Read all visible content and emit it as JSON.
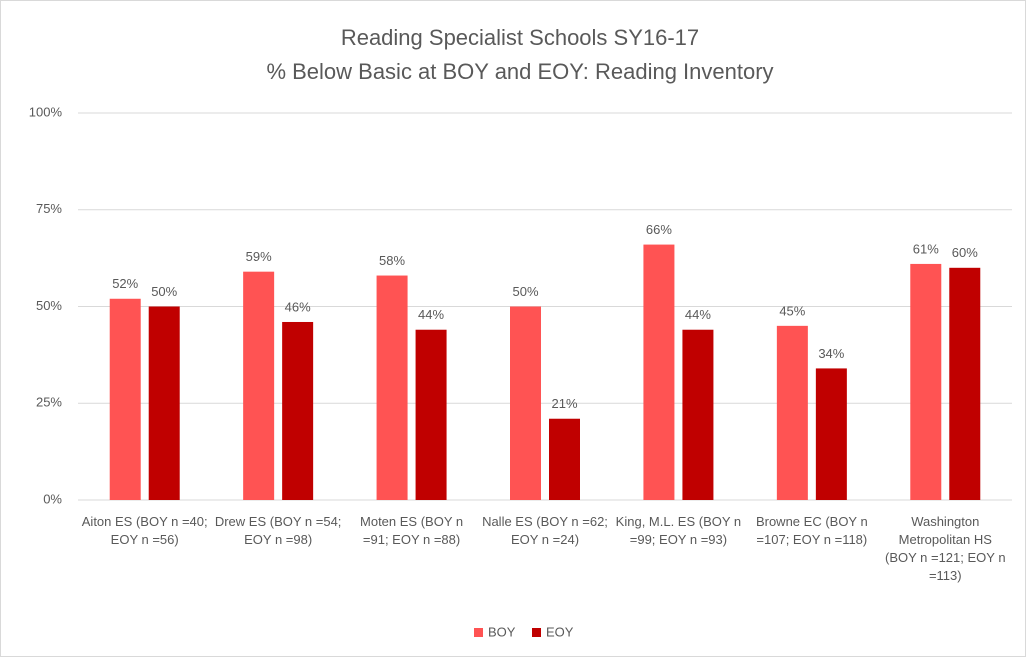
{
  "chart_data": {
    "type": "bar",
    "title": [
      "Reading Specialist Schools SY16-17",
      "% Below Basic at BOY and EOY: Reading Inventory"
    ],
    "categories": [
      "Aiton ES (BOY n =40; EOY n =56)",
      "Drew ES (BOY n =54; EOY n =98)",
      "Moten ES (BOY n =91; EOY n =88)",
      "Nalle ES (BOY n =62; EOY n =24)",
      "King, M.L. ES (BOY n =99; EOY n =93)",
      "Browne EC (BOY n =107; EOY n =118)",
      "Washington Metropolitan HS (BOY n =121; EOY n =113)"
    ],
    "series": [
      {
        "name": "BOY",
        "color": "#ff5353",
        "values": [
          52,
          59,
          58,
          50,
          66,
          45,
          61
        ],
        "value_labels": [
          "52%",
          "59%",
          "58%",
          "50%",
          "66%",
          "45%",
          "61%"
        ]
      },
      {
        "name": "EOY",
        "color": "#c00000",
        "values": [
          50,
          46,
          44,
          21,
          44,
          34,
          60
        ],
        "value_labels": [
          "50%",
          "46%",
          "44%",
          "21%",
          "44%",
          "34%",
          "60%"
        ]
      }
    ],
    "ylim": [
      0,
      100
    ],
    "yticks": [
      {
        "value": 0,
        "label": "0%"
      },
      {
        "value": 25,
        "label": "25%"
      },
      {
        "value": 50,
        "label": "50%"
      },
      {
        "value": 75,
        "label": "75%"
      },
      {
        "value": 100,
        "label": "100%"
      }
    ],
    "grid": true,
    "legend": "bottom"
  }
}
